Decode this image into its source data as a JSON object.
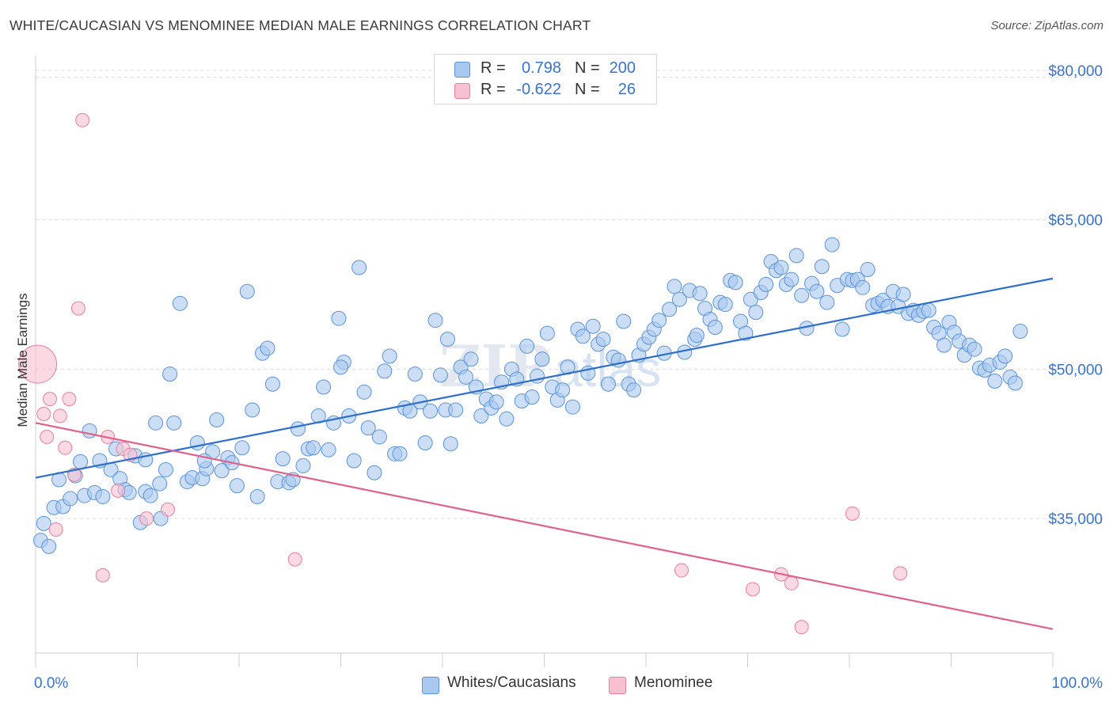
{
  "title": "WHITE/CAUCASIAN VS MENOMINEE MEDIAN MALE EARNINGS CORRELATION CHART",
  "source": "Source: ZipAtlas.com",
  "legend": {
    "rows": [
      {
        "r_label": "R =",
        "r_value": "0.798",
        "n_label": "N =",
        "n_value": "200",
        "color": "#a8c8f0"
      },
      {
        "r_label": "R =",
        "r_value": "-0.622",
        "n_label": "N =",
        "n_value": "26",
        "color": "#f8b8cc"
      }
    ]
  },
  "bottom_legend": {
    "whites": "Whites/Caucasians",
    "menominee": "Menominee"
  },
  "colors": {
    "whites_fill": "#a8c8f0",
    "whites_stroke": "#5b93db",
    "whites_line": "#2e6fcc",
    "menominee_fill": "#f8c0d0",
    "menominee_stroke": "#e77fa0",
    "menominee_line": "#e0608e",
    "tick_label": "#3a72d0",
    "grid": "#dcdcdc"
  },
  "chart_data": {
    "type": "scatter",
    "title": "WHITE/CAUCASIAN VS MENOMINEE MEDIAN MALE EARNINGS CORRELATION CHART",
    "xlabel": "",
    "ylabel": "Median Male Earnings",
    "xlim": [
      0,
      100
    ],
    "ylim": [
      21500,
      81500
    ],
    "x_tick_labels": [
      "0.0%",
      "100.0%"
    ],
    "y_ticks": [
      35000,
      50000,
      65000,
      80000
    ],
    "y_tick_labels": [
      "$35,000",
      "$50,000",
      "$65,000",
      "$80,000"
    ],
    "grid": true,
    "legend_position": "top-center",
    "series": [
      {
        "name": "Whites/Caucasians",
        "r": 0.798,
        "n": 200,
        "trend": {
          "x": [
            0,
            100
          ],
          "y": [
            39100,
            59100
          ]
        },
        "points": [
          [
            0.5,
            32800
          ],
          [
            0.8,
            34500
          ],
          [
            1.3,
            32200
          ],
          [
            1.8,
            36100
          ],
          [
            2.3,
            38900
          ],
          [
            2.7,
            36200
          ],
          [
            3.4,
            37000
          ],
          [
            3.9,
            39300
          ],
          [
            4.4,
            40700
          ],
          [
            4.8,
            37300
          ],
          [
            5.3,
            43800
          ],
          [
            5.8,
            37600
          ],
          [
            6.3,
            40800
          ],
          [
            6.6,
            37200
          ],
          [
            7.4,
            39900
          ],
          [
            7.9,
            42000
          ],
          [
            8.3,
            39000
          ],
          [
            8.8,
            37900
          ],
          [
            9.2,
            37600
          ],
          [
            9.8,
            41300
          ],
          [
            10.3,
            34600
          ],
          [
            10.8,
            37700
          ],
          [
            11.3,
            37300
          ],
          [
            11.8,
            44600
          ],
          [
            12.3,
            35000
          ],
          [
            12.8,
            39900
          ],
          [
            13.2,
            49500
          ],
          [
            13.6,
            44600
          ],
          [
            14.2,
            56600
          ],
          [
            14.9,
            38700
          ],
          [
            15.4,
            39100
          ],
          [
            15.9,
            42600
          ],
          [
            16.4,
            39000
          ],
          [
            16.8,
            40000
          ],
          [
            17.4,
            41700
          ],
          [
            17.8,
            44900
          ],
          [
            18.3,
            39800
          ],
          [
            18.9,
            41100
          ],
          [
            19.3,
            40600
          ],
          [
            19.8,
            38300
          ],
          [
            20.3,
            42100
          ],
          [
            20.8,
            57800
          ],
          [
            21.3,
            45900
          ],
          [
            21.8,
            37200
          ],
          [
            22.3,
            51600
          ],
          [
            22.8,
            52100
          ],
          [
            23.3,
            48500
          ],
          [
            23.8,
            38700
          ],
          [
            24.3,
            41000
          ],
          [
            24.9,
            38600
          ],
          [
            25.3,
            38900
          ],
          [
            25.8,
            44000
          ],
          [
            26.3,
            40300
          ],
          [
            26.8,
            42000
          ],
          [
            27.3,
            42100
          ],
          [
            27.8,
            45300
          ],
          [
            28.3,
            48200
          ],
          [
            28.8,
            41900
          ],
          [
            29.3,
            44600
          ],
          [
            29.8,
            55100
          ],
          [
            30.3,
            50700
          ],
          [
            30.8,
            45300
          ],
          [
            31.3,
            40800
          ],
          [
            31.8,
            60200
          ],
          [
            32.3,
            47700
          ],
          [
            32.7,
            44100
          ],
          [
            33.3,
            39600
          ],
          [
            33.8,
            43200
          ],
          [
            34.3,
            49800
          ],
          [
            34.8,
            51300
          ],
          [
            35.3,
            41500
          ],
          [
            35.8,
            41500
          ],
          [
            36.3,
            46100
          ],
          [
            36.8,
            45800
          ],
          [
            37.3,
            49500
          ],
          [
            37.8,
            46700
          ],
          [
            38.3,
            42600
          ],
          [
            38.8,
            45800
          ],
          [
            39.3,
            54900
          ],
          [
            39.8,
            49400
          ],
          [
            40.3,
            45900
          ],
          [
            40.8,
            42500
          ],
          [
            41.3,
            45900
          ],
          [
            41.8,
            50200
          ],
          [
            42.3,
            49200
          ],
          [
            42.8,
            51000
          ],
          [
            43.3,
            48200
          ],
          [
            43.8,
            45300
          ],
          [
            44.3,
            47000
          ],
          [
            44.8,
            46100
          ],
          [
            45.3,
            46700
          ],
          [
            45.8,
            48700
          ],
          [
            46.3,
            45000
          ],
          [
            46.8,
            50000
          ],
          [
            47.3,
            49000
          ],
          [
            47.8,
            46800
          ],
          [
            48.3,
            52300
          ],
          [
            48.8,
            47200
          ],
          [
            49.3,
            49300
          ],
          [
            49.8,
            51000
          ],
          [
            50.3,
            53600
          ],
          [
            50.8,
            48200
          ],
          [
            51.3,
            46900
          ],
          [
            51.8,
            47900
          ],
          [
            52.3,
            50200
          ],
          [
            52.8,
            46200
          ],
          [
            53.3,
            54000
          ],
          [
            53.8,
            53300
          ],
          [
            54.3,
            49600
          ],
          [
            54.8,
            54300
          ],
          [
            55.3,
            52500
          ],
          [
            55.8,
            53000
          ],
          [
            56.3,
            48500
          ],
          [
            56.8,
            51200
          ],
          [
            57.3,
            50900
          ],
          [
            57.8,
            54800
          ],
          [
            58.3,
            48500
          ],
          [
            58.8,
            47900
          ],
          [
            59.3,
            51400
          ],
          [
            59.8,
            52500
          ],
          [
            60.3,
            53200
          ],
          [
            60.8,
            54000
          ],
          [
            61.3,
            54900
          ],
          [
            61.8,
            51600
          ],
          [
            62.3,
            56000
          ],
          [
            62.8,
            58300
          ],
          [
            63.3,
            57000
          ],
          [
            63.8,
            51700
          ],
          [
            64.3,
            57900
          ],
          [
            64.8,
            53000
          ],
          [
            65.3,
            57600
          ],
          [
            65.8,
            56100
          ],
          [
            66.3,
            55000
          ],
          [
            66.8,
            54200
          ],
          [
            67.3,
            56700
          ],
          [
            67.8,
            56500
          ],
          [
            68.3,
            58900
          ],
          [
            68.8,
            58700
          ],
          [
            69.3,
            54800
          ],
          [
            69.8,
            53600
          ],
          [
            70.3,
            57000
          ],
          [
            70.8,
            55700
          ],
          [
            71.3,
            57700
          ],
          [
            71.8,
            58500
          ],
          [
            72.3,
            60800
          ],
          [
            72.8,
            59900
          ],
          [
            73.3,
            60200
          ],
          [
            73.8,
            58500
          ],
          [
            74.3,
            59000
          ],
          [
            74.8,
            61400
          ],
          [
            75.3,
            57400
          ],
          [
            75.8,
            54100
          ],
          [
            76.3,
            58600
          ],
          [
            76.8,
            57800
          ],
          [
            77.3,
            60300
          ],
          [
            77.8,
            56700
          ],
          [
            78.3,
            62500
          ],
          [
            78.8,
            58400
          ],
          [
            79.3,
            54000
          ],
          [
            79.8,
            59000
          ],
          [
            80.3,
            58900
          ],
          [
            80.8,
            59000
          ],
          [
            81.3,
            58200
          ],
          [
            81.8,
            60000
          ],
          [
            82.3,
            56400
          ],
          [
            82.8,
            56600
          ],
          [
            83.3,
            56900
          ],
          [
            83.8,
            56300
          ],
          [
            84.3,
            57800
          ],
          [
            84.8,
            56300
          ],
          [
            85.3,
            57500
          ],
          [
            85.8,
            55600
          ],
          [
            86.3,
            55900
          ],
          [
            86.8,
            55400
          ],
          [
            87.3,
            55800
          ],
          [
            87.8,
            55900
          ],
          [
            88.3,
            54200
          ],
          [
            88.8,
            53600
          ],
          [
            89.3,
            52400
          ],
          [
            89.8,
            54700
          ],
          [
            90.3,
            53700
          ],
          [
            90.8,
            52800
          ],
          [
            91.3,
            51400
          ],
          [
            91.8,
            52400
          ],
          [
            92.3,
            52000
          ],
          [
            92.8,
            50100
          ],
          [
            93.3,
            49900
          ],
          [
            93.8,
            50400
          ],
          [
            94.3,
            48800
          ],
          [
            94.8,
            50700
          ],
          [
            95.3,
            51300
          ],
          [
            95.8,
            49200
          ],
          [
            96.3,
            48600
          ],
          [
            96.8,
            53800
          ],
          [
            16.6,
            40800
          ],
          [
            12.2,
            38500
          ],
          [
            10.8,
            40900
          ],
          [
            30.0,
            50200
          ],
          [
            65.0,
            53400
          ],
          [
            40.5,
            53000
          ]
        ]
      },
      {
        "name": "Menominee",
        "r": -0.622,
        "n": 26,
        "trend": {
          "x": [
            0,
            100
          ],
          "y": [
            44600,
            23900
          ]
        },
        "points": [
          [
            0.2,
            50500
          ],
          [
            0.8,
            45500
          ],
          [
            1.1,
            43200
          ],
          [
            1.4,
            47000
          ],
          [
            2.0,
            33900
          ],
          [
            2.4,
            45300
          ],
          [
            2.9,
            42100
          ],
          [
            3.3,
            47000
          ],
          [
            3.8,
            39400
          ],
          [
            4.2,
            56100
          ],
          [
            4.6,
            75000
          ],
          [
            6.6,
            29300
          ],
          [
            7.1,
            43200
          ],
          [
            8.1,
            37800
          ],
          [
            8.6,
            42000
          ],
          [
            9.3,
            41400
          ],
          [
            10.9,
            35000
          ],
          [
            13.0,
            35900
          ],
          [
            25.5,
            30900
          ],
          [
            63.5,
            29800
          ],
          [
            70.5,
            27900
          ],
          [
            73.3,
            29400
          ],
          [
            74.3,
            28500
          ],
          [
            75.3,
            24100
          ],
          [
            80.3,
            35500
          ],
          [
            85.0,
            29500
          ]
        ]
      }
    ]
  }
}
